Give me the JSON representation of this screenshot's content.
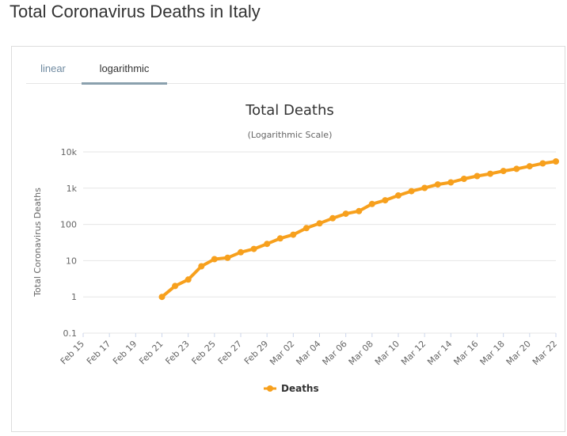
{
  "page": {
    "title": "Total Coronavirus Deaths in Italy"
  },
  "tabs": [
    {
      "label": "linear",
      "active": false
    },
    {
      "label": "logarithmic",
      "active": true
    }
  ],
  "colors": {
    "series": "#f7a01d",
    "grid": "#e6e6e6",
    "text": "#333333",
    "axis_text": "#666666"
  },
  "chart_data": {
    "type": "line",
    "title": "Total Deaths",
    "subtitle": "(Logarithmic Scale)",
    "ylabel": "Total Coronavirus Deaths",
    "xlabel": "",
    "y_scale": "log",
    "ylim": [
      0.1,
      10000
    ],
    "y_ticks": [
      0.1,
      1,
      10,
      100,
      1000,
      10000
    ],
    "y_tick_labels": [
      "0.1",
      "1",
      "10",
      "100",
      "1k",
      "10k"
    ],
    "x": [
      "Feb 15",
      "Feb 16",
      "Feb 17",
      "Feb 18",
      "Feb 19",
      "Feb 20",
      "Feb 21",
      "Feb 22",
      "Feb 23",
      "Feb 24",
      "Feb 25",
      "Feb 26",
      "Feb 27",
      "Feb 28",
      "Feb 29",
      "Mar 01",
      "Mar 02",
      "Mar 03",
      "Mar 04",
      "Mar 05",
      "Mar 06",
      "Mar 07",
      "Mar 08",
      "Mar 09",
      "Mar 10",
      "Mar 11",
      "Mar 12",
      "Mar 13",
      "Mar 14",
      "Mar 15",
      "Mar 16",
      "Mar 17",
      "Mar 18",
      "Mar 19",
      "Mar 20",
      "Mar 21",
      "Mar 22"
    ],
    "x_tick_labels": [
      "Feb 15",
      "Feb 17",
      "Feb 19",
      "Feb 21",
      "Feb 23",
      "Feb 25",
      "Feb 27",
      "Feb 29",
      "Mar 02",
      "Mar 04",
      "Mar 06",
      "Mar 08",
      "Mar 10",
      "Mar 12",
      "Mar 14",
      "Mar 16",
      "Mar 18",
      "Mar 20",
      "Mar 22"
    ],
    "grid": true,
    "legend": "bottom-center",
    "series": [
      {
        "name": "Deaths",
        "values": [
          null,
          null,
          null,
          null,
          null,
          null,
          1,
          2,
          3,
          7,
          11,
          12,
          17,
          21,
          29,
          41,
          52,
          79,
          107,
          148,
          197,
          233,
          366,
          463,
          631,
          827,
          1016,
          1266,
          1441,
          1809,
          2158,
          2503,
          2978,
          3405,
          4032,
          4825,
          5476
        ]
      }
    ]
  }
}
